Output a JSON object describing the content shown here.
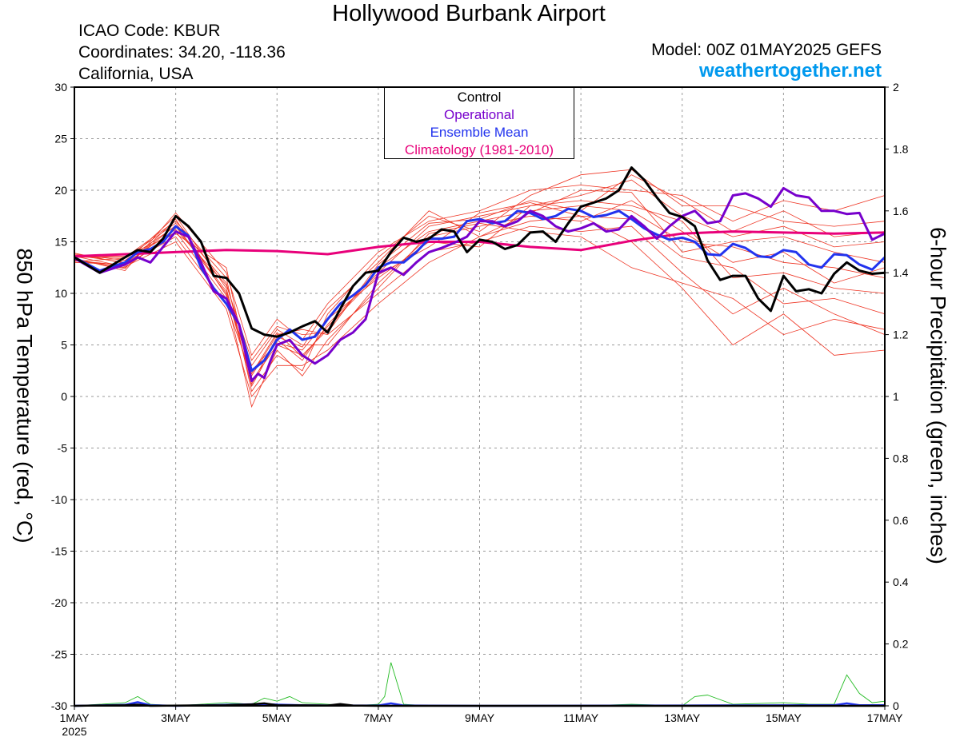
{
  "header": {
    "title": "Hollywood Burbank Airport",
    "icao": "ICAO Code: KBUR",
    "coordinates": "Coordinates: 34.20, -118.36",
    "region": "California, USA",
    "model": "Model: 00Z 01MAY2025 GEFS",
    "site": "weathertogether.net"
  },
  "legend": {
    "control": "Control",
    "operational": "Operational",
    "mean": "Ensemble Mean",
    "climo": "Climatology (1981-2010)"
  },
  "colors": {
    "control": "#000000",
    "operational": "#7700cc",
    "mean": "#2233ee",
    "climo": "#e8007a",
    "members": "#ee3322",
    "precip": "#22bb22",
    "site": "#0099ee"
  },
  "chart_data": {
    "type": "line",
    "ylabel": "850 hPa Temperature (red, °C)",
    "y2label": "6-hour Precipitation (green, inches)",
    "xlim": [
      0,
      16
    ],
    "ylim": [
      -30,
      30
    ],
    "y2lim": [
      0,
      2
    ],
    "yticks": [
      -30,
      -25,
      -20,
      -15,
      -10,
      -5,
      0,
      5,
      10,
      15,
      20,
      25,
      30
    ],
    "y2ticks": [
      0,
      0.2,
      0.4,
      0.6,
      0.8,
      1,
      1.2,
      1.4,
      1.6,
      1.8,
      2
    ],
    "xticks": [
      {
        "x": 0,
        "label": "1MAY",
        "sub": "2025"
      },
      {
        "x": 2,
        "label": "3MAY"
      },
      {
        "x": 4,
        "label": "5MAY"
      },
      {
        "x": 6,
        "label": "7MAY"
      },
      {
        "x": 8,
        "label": "9MAY"
      },
      {
        "x": 10,
        "label": "11MAY"
      },
      {
        "x": 12,
        "label": "13MAY"
      },
      {
        "x": 14,
        "label": "15MAY"
      },
      {
        "x": 16,
        "label": "17MAY"
      }
    ],
    "series": [
      {
        "name": "Climatology (1981-2010)",
        "color": "#e8007a",
        "width": 3,
        "x": [
          0,
          2,
          3,
          4,
          5,
          6,
          7,
          8,
          9,
          10,
          11,
          12,
          13,
          14,
          15,
          16
        ],
        "y": [
          13.6,
          14.0,
          14.2,
          14.1,
          13.8,
          14.5,
          15.0,
          15.0,
          14.5,
          14.2,
          15.1,
          15.8,
          16.0,
          15.9,
          15.8,
          15.9
        ]
      },
      {
        "name": "Ensemble Mean",
        "color": "#2233ee",
        "width": 3,
        "x": [
          0,
          0.5,
          1,
          1.25,
          1.5,
          1.75,
          2,
          2.25,
          2.5,
          2.75,
          3,
          3.25,
          3.5,
          3.75,
          4,
          4.25,
          4.5,
          4.75,
          5,
          5.25,
          5.5,
          5.75,
          6,
          6.25,
          6.5,
          6.75,
          7,
          7.25,
          7.5,
          7.75,
          8,
          8.25,
          8.5,
          8.75,
          9,
          9.25,
          9.5,
          9.75,
          10,
          10.25,
          10.5,
          10.75,
          11,
          11.25,
          11.5,
          11.75,
          12,
          12.25,
          12.5,
          12.75,
          13,
          13.25,
          13.5,
          13.75,
          14,
          14.25,
          14.5,
          14.75,
          15,
          15.25,
          15.5,
          15.75,
          16
        ],
        "y": [
          13.5,
          12.2,
          13.0,
          14.0,
          14.3,
          15.0,
          16.5,
          15.6,
          12.5,
          10.5,
          9.0,
          7.0,
          2.5,
          3.5,
          5.5,
          6.5,
          5.5,
          5.8,
          7.5,
          9.0,
          9.8,
          10.8,
          12.5,
          13.0,
          13.0,
          14.0,
          15.3,
          15.3,
          15.5,
          17.0,
          17.2,
          16.8,
          17.0,
          18.0,
          17.8,
          17.2,
          17.5,
          18.2,
          18.0,
          17.4,
          17.6,
          18.0,
          17.2,
          16.3,
          15.7,
          15.2,
          15.4,
          15.0,
          13.8,
          13.7,
          14.8,
          14.4,
          13.6,
          13.5,
          14.2,
          14.0,
          12.8,
          12.5,
          13.8,
          13.7,
          12.8,
          12.3,
          13.5
        ]
      },
      {
        "name": "Operational",
        "color": "#7700cc",
        "width": 3,
        "x": [
          0,
          0.5,
          1,
          1.25,
          1.5,
          1.75,
          2,
          2.25,
          2.5,
          2.75,
          3,
          3.25,
          3.5,
          3.625,
          3.75,
          3.875,
          4,
          4.25,
          4.5,
          4.75,
          5,
          5.25,
          5.5,
          5.75,
          6,
          6.25,
          6.5,
          6.75,
          7,
          7.25,
          7.5,
          7.75,
          8,
          8.25,
          8.5,
          8.75,
          9,
          9.25,
          9.5,
          9.75,
          10,
          10.25,
          10.5,
          10.75,
          11,
          11.25,
          11.5,
          11.75,
          12,
          12.25,
          12.5,
          12.75,
          13,
          13.25,
          13.5,
          13.75,
          14,
          14.25,
          14.5,
          14.75,
          15,
          15.25,
          15.5,
          15.75,
          16
        ],
        "y": [
          13.4,
          12.0,
          12.8,
          13.5,
          13.0,
          14.5,
          16.0,
          15.5,
          13.0,
          10.2,
          9.5,
          7.0,
          1.5,
          2.2,
          1.8,
          3.5,
          5.0,
          5.5,
          4.0,
          3.2,
          4.0,
          5.5,
          6.2,
          7.5,
          12.0,
          12.5,
          11.8,
          13.0,
          14.0,
          14.4,
          14.9,
          15.5,
          17.0,
          17.0,
          16.5,
          17.0,
          18.0,
          17.5,
          16.5,
          16.0,
          16.3,
          16.8,
          16.0,
          16.2,
          17.5,
          16.5,
          15.3,
          16.5,
          17.5,
          18.0,
          16.8,
          17.0,
          19.5,
          19.7,
          19.2,
          18.4,
          20.2,
          19.5,
          19.3,
          18.0,
          18.0,
          17.7,
          17.8,
          15.2,
          15.8
        ]
      },
      {
        "name": "Control",
        "color": "#000000",
        "width": 3,
        "x": [
          0,
          0.5,
          1,
          1.25,
          1.5,
          1.75,
          2,
          2.25,
          2.5,
          2.75,
          3,
          3.25,
          3.5,
          3.75,
          4,
          4.25,
          4.5,
          4.75,
          5,
          5.25,
          5.5,
          5.75,
          6,
          6.25,
          6.5,
          6.75,
          7,
          7.25,
          7.5,
          7.75,
          8,
          8.25,
          8.5,
          8.75,
          9,
          9.25,
          9.5,
          9.75,
          10,
          10.25,
          10.5,
          10.75,
          11,
          11.25,
          11.5,
          11.75,
          12,
          12.25,
          12.5,
          12.75,
          13,
          13.25,
          13.5,
          13.75,
          14,
          14.25,
          14.5,
          14.75,
          15,
          15.25,
          15.5,
          15.75,
          16
        ],
        "y": [
          13.5,
          12.0,
          13.5,
          14.2,
          14.0,
          15.3,
          17.5,
          16.5,
          15.0,
          11.7,
          11.5,
          10.0,
          6.6,
          6.0,
          5.8,
          6.2,
          6.8,
          7.3,
          6.2,
          8.5,
          10.7,
          12.0,
          12.2,
          14.0,
          15.4,
          15.0,
          15.3,
          16.2,
          16.0,
          14.0,
          15.2,
          15.0,
          14.3,
          14.7,
          15.9,
          16.0,
          15.0,
          16.8,
          18.4,
          18.8,
          19.2,
          20.0,
          22.2,
          21.0,
          19.3,
          17.8,
          17.4,
          16.5,
          13.2,
          11.3,
          11.7,
          11.7,
          9.5,
          8.3,
          11.7,
          10.2,
          10.4,
          10.0,
          11.9,
          13.0,
          12.2,
          11.9,
          12.0
        ]
      }
    ],
    "members": [
      {
        "x": [
          0,
          1,
          2,
          3,
          3.5,
          4,
          4.5,
          5,
          6,
          7,
          8,
          9,
          10,
          11,
          12,
          13,
          14,
          15,
          16
        ],
        "y": [
          13.7,
          13.0,
          17.5,
          10.5,
          1.0,
          5.5,
          3.5,
          7.0,
          12.0,
          16.5,
          17.5,
          18.5,
          19.5,
          21.0,
          17.5,
          15.5,
          16.5,
          14.5,
          15.0
        ]
      },
      {
        "x": [
          0,
          1,
          2,
          3,
          3.5,
          4,
          4.5,
          5,
          6,
          7,
          8,
          9,
          10,
          11,
          12,
          13,
          14,
          15,
          16
        ],
        "y": [
          13.2,
          12.5,
          16.0,
          9.5,
          3.0,
          6.5,
          5.0,
          5.0,
          11.0,
          15.5,
          16.5,
          17.5,
          17.0,
          19.0,
          16.0,
          13.0,
          14.0,
          11.0,
          12.5
        ]
      },
      {
        "x": [
          0,
          1,
          2,
          3,
          3.5,
          4,
          4.5,
          5,
          6,
          7,
          8,
          9,
          10,
          11,
          12,
          13,
          14,
          15,
          16
        ],
        "y": [
          13.5,
          13.5,
          17.0,
          11.5,
          0.5,
          4.0,
          2.5,
          8.0,
          13.5,
          17.5,
          16.0,
          19.5,
          21.5,
          22.0,
          18.5,
          18.5,
          17.0,
          16.5,
          17.0
        ]
      },
      {
        "x": [
          0,
          1,
          2,
          3,
          3.5,
          4,
          4.5,
          5,
          6,
          7,
          8,
          9,
          10,
          11,
          12,
          13,
          14,
          15,
          16
        ],
        "y": [
          13.0,
          12.8,
          15.5,
          9.0,
          2.0,
          6.0,
          6.5,
          6.0,
          10.0,
          14.0,
          15.0,
          16.5,
          16.0,
          16.5,
          12.0,
          8.0,
          10.5,
          8.0,
          6.0
        ]
      },
      {
        "x": [
          0,
          1,
          2,
          3,
          3.5,
          4,
          4.5,
          5,
          6,
          7,
          8,
          9,
          10,
          11,
          12,
          13,
          14,
          15,
          16
        ],
        "y": [
          13.8,
          13.2,
          16.5,
          10.0,
          1.5,
          5.0,
          4.0,
          6.5,
          12.5,
          16.0,
          17.0,
          18.0,
          18.5,
          18.0,
          15.0,
          14.5,
          13.0,
          12.5,
          11.5
        ]
      },
      {
        "x": [
          0,
          1,
          2,
          3,
          3.5,
          4,
          4.5,
          5,
          6,
          7,
          8,
          9,
          10,
          11,
          12,
          13,
          14,
          15,
          16
        ],
        "y": [
          13.4,
          12.2,
          17.8,
          12.0,
          4.0,
          7.5,
          5.5,
          9.0,
          14.0,
          17.0,
          18.0,
          20.0,
          20.5,
          20.0,
          19.5,
          17.0,
          19.0,
          18.0,
          19.5
        ]
      },
      {
        "x": [
          0,
          1,
          2,
          3,
          3.5,
          4,
          4.5,
          5,
          6,
          7,
          8,
          9,
          10,
          11,
          12,
          13,
          14,
          15,
          16
        ],
        "y": [
          13.6,
          12.6,
          15.0,
          8.5,
          0.0,
          3.0,
          3.0,
          4.5,
          9.0,
          13.0,
          15.5,
          17.0,
          17.5,
          15.0,
          10.5,
          5.0,
          8.0,
          4.0,
          4.5
        ]
      },
      {
        "x": [
          0,
          1,
          2,
          3,
          3.5,
          4,
          4.5,
          5,
          6,
          7,
          8,
          9,
          10,
          11,
          12,
          13,
          14,
          15,
          16
        ],
        "y": [
          13.1,
          13.4,
          16.8,
          11.0,
          2.5,
          5.2,
          4.5,
          7.5,
          11.5,
          15.0,
          14.5,
          18.5,
          19.0,
          18.5,
          17.0,
          11.5,
          12.0,
          10.5,
          10.0
        ]
      },
      {
        "x": [
          0,
          1,
          2,
          3,
          3.5,
          4,
          4.5,
          5,
          6,
          7,
          8,
          9,
          10,
          11,
          12,
          13,
          14,
          15,
          16
        ],
        "y": [
          13.9,
          12.9,
          16.2,
          10.8,
          3.5,
          6.8,
          6.0,
          6.2,
          12.8,
          16.8,
          17.2,
          19.0,
          18.0,
          21.5,
          19.0,
          16.0,
          18.0,
          15.5,
          16.0
        ]
      },
      {
        "x": [
          0,
          1,
          2,
          3,
          3.5,
          4,
          4.5,
          5,
          6,
          7,
          8,
          9,
          10,
          11,
          12,
          13,
          14,
          15,
          16
        ],
        "y": [
          13.3,
          12.4,
          17.2,
          9.8,
          -1.0,
          4.5,
          2.0,
          5.5,
          10.5,
          15.8,
          16.8,
          16.0,
          15.5,
          12.5,
          11.0,
          9.5,
          6.0,
          7.5,
          6.5
        ]
      },
      {
        "x": [
          0,
          1,
          2,
          3,
          3.5,
          4,
          4.5,
          5,
          6,
          7,
          8,
          9,
          10,
          11,
          12,
          13,
          14,
          15,
          16
        ],
        "y": [
          13.5,
          13.6,
          15.8,
          12.5,
          1.2,
          5.8,
          4.8,
          8.5,
          13.0,
          18.0,
          15.5,
          17.8,
          20.0,
          19.8,
          14.0,
          15.0,
          15.5,
          14.0,
          13.0
        ]
      },
      {
        "x": [
          0,
          1,
          2,
          3,
          3.5,
          4,
          4.5,
          5,
          6,
          7,
          8,
          9,
          10,
          11,
          12,
          13,
          14,
          15,
          16
        ],
        "y": [
          13.2,
          12.7,
          16.6,
          10.2,
          2.2,
          6.2,
          3.8,
          6.8,
          11.8,
          14.5,
          17.8,
          18.8,
          17.5,
          17.2,
          13.5,
          12.5,
          9.0,
          9.5,
          8.0
        ]
      }
    ],
    "precip": [
      {
        "name": "Members",
        "color": "#22bb22",
        "x": [
          0,
          0.5,
          1,
          1.25,
          1.5,
          2,
          2.5,
          3,
          3.5,
          3.75,
          4,
          4.25,
          4.5,
          5,
          5.5,
          6,
          6.125,
          6.25,
          6.5,
          7,
          8,
          9,
          10,
          11,
          12,
          12.25,
          12.5,
          13,
          14,
          14.5,
          15,
          15.25,
          15.5,
          15.75,
          16
        ],
        "y": [
          0,
          0.005,
          0.01,
          0.03,
          0.005,
          0,
          0.005,
          0.01,
          0.005,
          0.025,
          0.015,
          0.03,
          0.01,
          0.005,
          0,
          0.005,
          0.03,
          0.14,
          0.005,
          0,
          0,
          0,
          0,
          0.005,
          0,
          0.03,
          0.035,
          0.005,
          0.01,
          0.005,
          0.005,
          0.1,
          0.04,
          0.01,
          0.015
        ]
      },
      {
        "name": "Ensemble Mean",
        "color": "#2233ee",
        "x": [
          0,
          1,
          1.25,
          1.5,
          2,
          3,
          3.75,
          4,
          4.5,
          5,
          6,
          6.25,
          6.5,
          8,
          12,
          15,
          15.25,
          15.5,
          16
        ],
        "y": [
          0,
          0.003,
          0.012,
          0.002,
          0,
          0.003,
          0.006,
          0.004,
          0.002,
          0.001,
          0.001,
          0.008,
          0.001,
          0,
          0.001,
          0.002,
          0.008,
          0.002,
          0.002
        ]
      },
      {
        "name": "Control",
        "color": "#000000",
        "x": [
          0,
          1,
          1.25,
          1.5,
          3,
          3.5,
          3.75,
          4,
          5,
          5.25,
          5.5,
          6,
          16
        ],
        "y": [
          0,
          0.002,
          0.004,
          0,
          0.002,
          0.005,
          0.008,
          0.002,
          0.001,
          0.006,
          0.001,
          0,
          0
        ]
      }
    ]
  }
}
